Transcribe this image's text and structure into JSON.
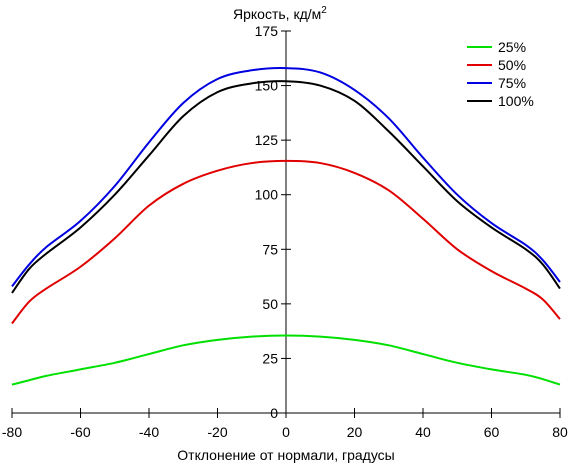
{
  "chart_data": {
    "type": "line",
    "title": "",
    "ylabel": "Яркость, кд/м",
    "ylabel_superscript": "2",
    "xlabel": "Отклонение от нормали, градусы",
    "xlim": [
      -80,
      80
    ],
    "ylim": [
      0,
      175
    ],
    "x_ticks": [
      -80,
      -60,
      -40,
      -20,
      0,
      20,
      40,
      60,
      80
    ],
    "y_ticks": [
      0,
      25,
      50,
      75,
      100,
      125,
      150,
      175
    ],
    "grid": false,
    "legend_position": "top-right",
    "series": [
      {
        "name": "25%",
        "color": "#00e000",
        "points": [
          [
            -80,
            13
          ],
          [
            -75,
            15
          ],
          [
            -70,
            17
          ],
          [
            -60,
            20
          ],
          [
            -50,
            23
          ],
          [
            -40,
            27
          ],
          [
            -30,
            31
          ],
          [
            -20,
            33.5
          ],
          [
            -10,
            35
          ],
          [
            0,
            35.5
          ],
          [
            10,
            35
          ],
          [
            20,
            33.5
          ],
          [
            30,
            31
          ],
          [
            40,
            27
          ],
          [
            50,
            23
          ],
          [
            60,
            20
          ],
          [
            70,
            17.5
          ],
          [
            75,
            15.5
          ],
          [
            80,
            13
          ]
        ]
      },
      {
        "name": "50%",
        "color": "#e00000",
        "points": [
          [
            -80,
            41
          ],
          [
            -75,
            51
          ],
          [
            -70,
            57
          ],
          [
            -60,
            67
          ],
          [
            -50,
            80
          ],
          [
            -40,
            95
          ],
          [
            -30,
            105
          ],
          [
            -20,
            111
          ],
          [
            -10,
            114.5
          ],
          [
            0,
            115.5
          ],
          [
            10,
            114.5
          ],
          [
            20,
            110
          ],
          [
            30,
            102
          ],
          [
            40,
            89
          ],
          [
            50,
            75
          ],
          [
            60,
            65
          ],
          [
            70,
            57
          ],
          [
            75,
            52
          ],
          [
            80,
            43
          ]
        ]
      },
      {
        "name": "75%",
        "color": "#0000e0",
        "points": [
          [
            -80,
            58
          ],
          [
            -75,
            68
          ],
          [
            -70,
            76
          ],
          [
            -60,
            88
          ],
          [
            -50,
            104
          ],
          [
            -40,
            124
          ],
          [
            -30,
            142
          ],
          [
            -20,
            153
          ],
          [
            -10,
            157
          ],
          [
            0,
            158
          ],
          [
            10,
            156
          ],
          [
            20,
            148
          ],
          [
            30,
            135
          ],
          [
            40,
            117
          ],
          [
            50,
            100
          ],
          [
            60,
            87
          ],
          [
            70,
            77
          ],
          [
            75,
            70
          ],
          [
            80,
            60
          ]
        ]
      },
      {
        "name": "100%",
        "color": "#000000",
        "points": [
          [
            -80,
            55
          ],
          [
            -75,
            66
          ],
          [
            -70,
            73
          ],
          [
            -60,
            85
          ],
          [
            -50,
            100
          ],
          [
            -40,
            118
          ],
          [
            -30,
            136
          ],
          [
            -20,
            147
          ],
          [
            -10,
            151
          ],
          [
            0,
            152
          ],
          [
            10,
            150
          ],
          [
            20,
            143
          ],
          [
            30,
            129
          ],
          [
            40,
            113
          ],
          [
            50,
            97
          ],
          [
            60,
            85
          ],
          [
            70,
            75
          ],
          [
            75,
            68
          ],
          [
            80,
            57
          ]
        ]
      }
    ]
  }
}
